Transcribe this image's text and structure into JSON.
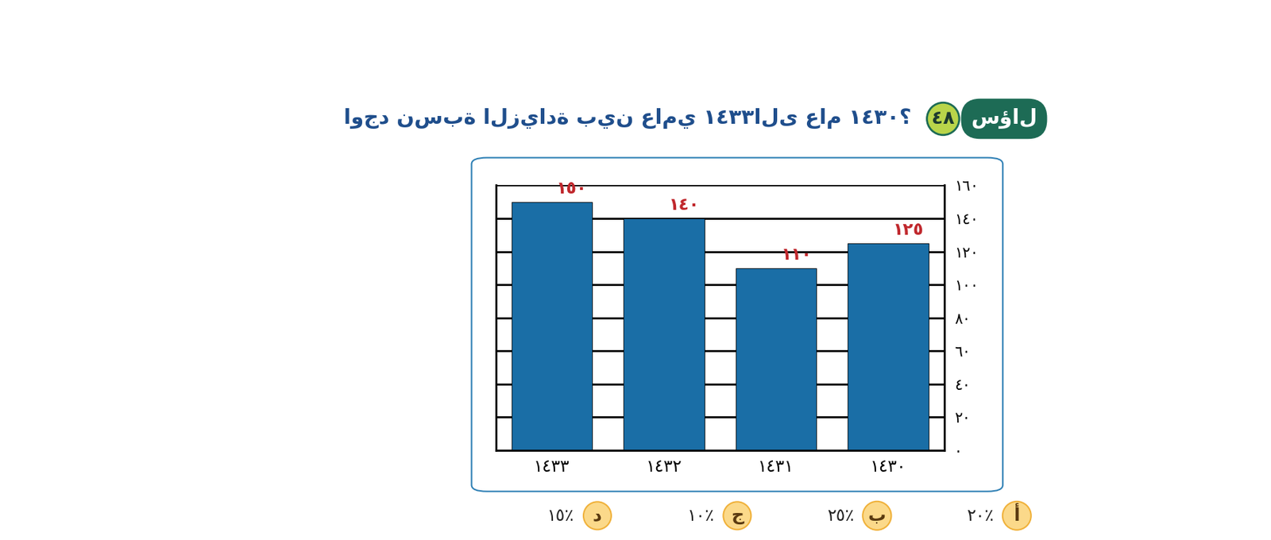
{
  "chart_data": {
    "type": "bar",
    "title": "اوجد نسبة الزيادة بين عامي ١٤٣٣الى عام ١٤٣٠؟",
    "categories": [
      "١٤٣٣",
      "١٤٣٢",
      "١٤٣١",
      "١٤٣٠"
    ],
    "values": [
      150,
      140,
      110,
      125
    ],
    "value_labels": [
      "١٥٠",
      "١٤٠",
      "١١٠",
      "١٢٥"
    ],
    "data_labels": true,
    "color": "#1a6ea6",
    "ylim": [
      0,
      160
    ],
    "yticks": [
      {
        "value": 0,
        "label": "٠"
      },
      {
        "value": 20,
        "label": "٢٠"
      },
      {
        "value": 40,
        "label": "٤٠"
      },
      {
        "value": 60,
        "label": "٦٠"
      },
      {
        "value": 80,
        "label": "٨٠"
      },
      {
        "value": 100,
        "label": "١٠٠"
      },
      {
        "value": 120,
        "label": "١٢٠"
      },
      {
        "value": 140,
        "label": "١٤٠"
      },
      {
        "value": 160,
        "label": "١٦٠"
      }
    ],
    "grid": true
  },
  "badge": {
    "label": "سؤال",
    "number": "٤٨"
  },
  "choices": [
    {
      "letter": "أ",
      "text": "٢٠٪"
    },
    {
      "letter": "ب",
      "text": "٢٥٪"
    },
    {
      "letter": "ج",
      "text": "١٠٪"
    },
    {
      "letter": "د",
      "text": "١٥٪"
    }
  ]
}
